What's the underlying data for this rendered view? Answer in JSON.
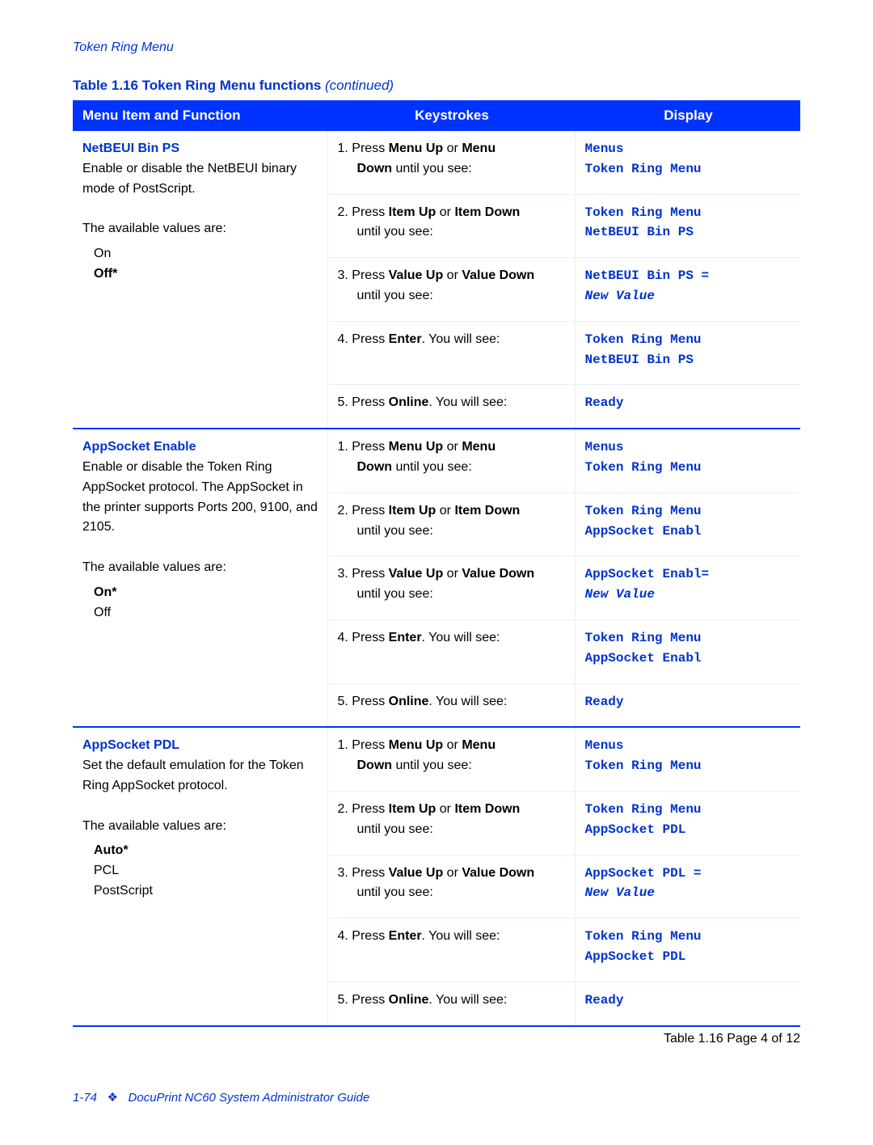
{
  "header": "Token Ring Menu",
  "caption_prefix": "Table 1.16  Token Ring Menu functions ",
  "caption_suffix": "(continued)",
  "columns": [
    "Menu Item and Function",
    "Keystrokes",
    "Display"
  ],
  "table_footer": "Table 1.16  Page 4 of 12",
  "page_footer_left": "1-74",
  "page_footer_diamond": "❖",
  "page_footer_text": "DocuPrint NC60 System Administrator Guide",
  "sections": [
    {
      "title": "NetBEUI Bin PS",
      "desc": "Enable or disable the NetBEUI binary mode of PostScript.",
      "avail": "The available values are:",
      "values": [
        {
          "label": "On",
          "bold": false
        },
        {
          "label": "Off*",
          "bold": true
        }
      ],
      "rows": [
        {
          "key_html": "1. Press <b>Menu Up</b> or <b>Menu</b><br><span class='indent2'><b>Down</b> until you see:</span>",
          "disp": [
            "Menus",
            "Token Ring Menu"
          ],
          "disp_styles": [
            "mono",
            "mono"
          ]
        },
        {
          "key_html": "2. Press <b>Item Up</b> or <b>Item Down</b><br><span class='indent2'>until you see:</span>",
          "disp": [
            "Token Ring Menu",
            "NetBEUI Bin PS"
          ],
          "disp_styles": [
            "mono",
            "mono"
          ]
        },
        {
          "key_html": "3. Press <b>Value Up</b> or <b>Value Down</b><br><span class='indent2'>until you see:</span>",
          "disp": [
            "NetBEUI Bin PS =",
            "New Value"
          ],
          "disp_styles": [
            "mono",
            "mono-italic"
          ]
        },
        {
          "key_html": "4. Press <b>Enter</b>. You will see:",
          "disp": [
            "Token Ring Menu",
            "NetBEUI Bin PS"
          ],
          "disp_styles": [
            "mono",
            "mono"
          ]
        },
        {
          "key_html": "5. Press <b>Online</b>. You will see:",
          "disp": [
            "Ready"
          ],
          "disp_styles": [
            "mono"
          ]
        }
      ]
    },
    {
      "title": "AppSocket Enable",
      "desc": "Enable or disable the Token Ring AppSocket protocol. The AppSocket in the printer supports Ports 200, 9100, and 2105.",
      "avail": "The available values are:",
      "values": [
        {
          "label": "On*",
          "bold": true
        },
        {
          "label": "Off",
          "bold": false
        }
      ],
      "rows": [
        {
          "key_html": "1. Press <b>Menu Up</b> or <b>Menu</b><br><span class='indent2'><b>Down</b> until you see:</span>",
          "disp": [
            "Menus",
            "Token Ring Menu"
          ],
          "disp_styles": [
            "mono",
            "mono"
          ]
        },
        {
          "key_html": "2. Press <b>Item Up</b> or <b>Item Down</b><br><span class='indent2'>until you see:</span>",
          "disp": [
            "Token Ring Menu",
            "AppSocket Enabl"
          ],
          "disp_styles": [
            "mono",
            "mono"
          ]
        },
        {
          "key_html": "3. Press <b>Value Up</b> or <b>Value Down</b><br><span class='indent2'>until you see:</span>",
          "disp": [
            "AppSocket Enabl=",
            "New Value"
          ],
          "disp_styles": [
            "mono",
            "mono-italic"
          ]
        },
        {
          "key_html": "4. Press <b>Enter</b>. You will see:",
          "disp": [
            "Token Ring Menu",
            "AppSocket Enabl"
          ],
          "disp_styles": [
            "mono",
            "mono"
          ]
        },
        {
          "key_html": "5. Press <b>Online</b>. You will see:",
          "disp": [
            "Ready"
          ],
          "disp_styles": [
            "mono"
          ]
        }
      ]
    },
    {
      "title": "AppSocket PDL",
      "desc": "Set the default emulation for the Token Ring AppSocket protocol.",
      "avail": "The available values are:",
      "values": [
        {
          "label": "Auto*",
          "bold": true
        },
        {
          "label": "PCL",
          "bold": false
        },
        {
          "label": "PostScript",
          "bold": false
        }
      ],
      "rows": [
        {
          "key_html": "1. Press <b>Menu Up</b> or <b>Menu</b><br><span class='indent2'><b>Down</b> until you see:</span>",
          "disp": [
            "Menus",
            "Token Ring Menu"
          ],
          "disp_styles": [
            "mono",
            "mono"
          ]
        },
        {
          "key_html": "2. Press <b>Item Up</b> or <b>Item Down</b><br><span class='indent2'>until you see:</span>",
          "disp": [
            "Token Ring Menu",
            "AppSocket PDL"
          ],
          "disp_styles": [
            "mono",
            "mono"
          ]
        },
        {
          "key_html": "3. Press <b>Value Up</b> or <b>Value Down</b><br><span class='indent2'>until you see:</span>",
          "disp": [
            "AppSocket PDL  =",
            "New Value"
          ],
          "disp_styles": [
            "mono",
            "mono-italic"
          ]
        },
        {
          "key_html": "4. Press <b>Enter</b>. You will see:",
          "disp": [
            "Token Ring Menu",
            "AppSocket PDL"
          ],
          "disp_styles": [
            "mono",
            "mono"
          ]
        },
        {
          "key_html": "5. Press <b>Online</b>. You will see:",
          "disp": [
            "Ready"
          ],
          "disp_styles": [
            "mono"
          ]
        }
      ]
    }
  ]
}
